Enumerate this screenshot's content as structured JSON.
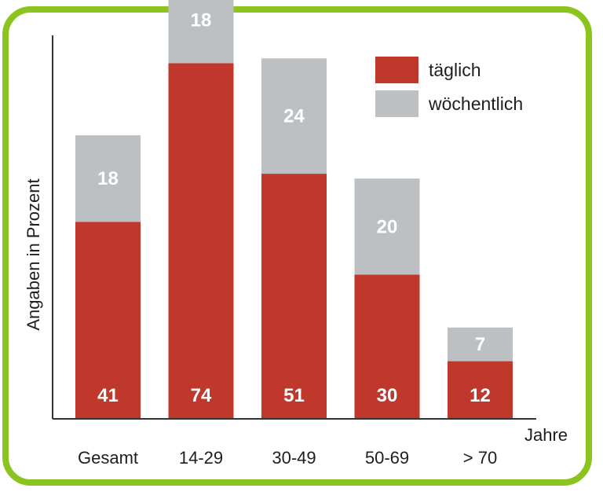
{
  "chart_data": {
    "type": "bar",
    "stacked": true,
    "categories": [
      "Gesamt",
      "14-29",
      "30-49",
      "50-69",
      "> 70"
    ],
    "series": [
      {
        "name": "täglich",
        "values": [
          41,
          74,
          51,
          30,
          12
        ],
        "color": "#c0372b"
      },
      {
        "name": "wöchentlich",
        "values": [
          18,
          18,
          24,
          20,
          7
        ],
        "color": "#bdc0c3"
      }
    ],
    "title": "",
    "xlabel": "Jahre",
    "ylabel": "Angaben in Prozent",
    "ylim": [
      0,
      100
    ],
    "grid": false,
    "legend": "top-right"
  },
  "colors": {
    "frame": "#8cc41f",
    "axis": "#333333",
    "text": "#1e1e1e"
  }
}
